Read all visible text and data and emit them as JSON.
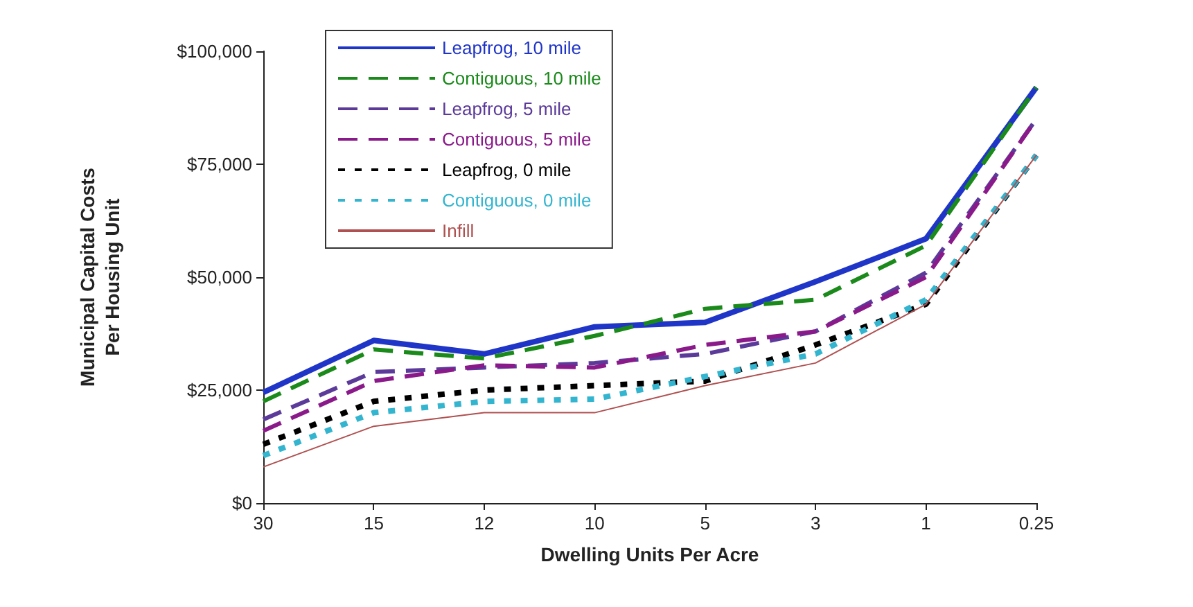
{
  "chart_data": {
    "type": "line",
    "xlabel": "Dwelling Units Per Acre",
    "ylabel": "Municipal Capital Costs\nPer Housing Unit",
    "categories": [
      "30",
      "15",
      "12",
      "10",
      "5",
      "3",
      "1",
      "0.25"
    ],
    "ylim": [
      0,
      100000
    ],
    "yticks": [
      {
        "value": 0,
        "label": "$0"
      },
      {
        "value": 25000,
        "label": "$25,000"
      },
      {
        "value": 50000,
        "label": "$50,000"
      },
      {
        "value": 75000,
        "label": "$75,000"
      },
      {
        "value": 100000,
        "label": "$100,000"
      }
    ],
    "grid": false,
    "legend": "top left",
    "marker": "none",
    "series": [
      {
        "name": "Leapfrog, 10 mile",
        "color": "#1f35c8",
        "line_style": "solid",
        "values": [
          24500,
          36000,
          33000,
          39000,
          40000,
          49000,
          58500,
          92000
        ]
      },
      {
        "name": "Contiguous, 10 mile",
        "color": "#1a8a1a",
        "line_style": "dashed",
        "values": [
          22500,
          34000,
          32000,
          37000,
          43000,
          45000,
          57000,
          92000
        ]
      },
      {
        "name": "Leapfrog, 5 mile",
        "color": "#5b3a9a",
        "line_style": "dashed",
        "values": [
          18500,
          29000,
          30000,
          31000,
          33000,
          38000,
          51000,
          85000
        ]
      },
      {
        "name": "Contiguous, 5 mile",
        "color": "#8a1a8a",
        "line_style": "dashed",
        "values": [
          16000,
          27000,
          30500,
          30000,
          35000,
          38000,
          50000,
          85000
        ]
      },
      {
        "name": "Leapfrog, 0 mile",
        "color": "#000000",
        "line_style": "dotted",
        "values": [
          13000,
          22500,
          25000,
          26000,
          27000,
          35000,
          44000,
          77000
        ]
      },
      {
        "name": "Contiguous, 0 mile",
        "color": "#33b5d0",
        "line_style": "dotted",
        "values": [
          10500,
          20000,
          22500,
          23000,
          28000,
          33000,
          45000,
          77000
        ]
      },
      {
        "name": "Infill",
        "color": "#b05050",
        "line_style": "solid",
        "values": [
          8000,
          17000,
          20000,
          20000,
          26000,
          31000,
          44000,
          77000
        ]
      }
    ]
  }
}
